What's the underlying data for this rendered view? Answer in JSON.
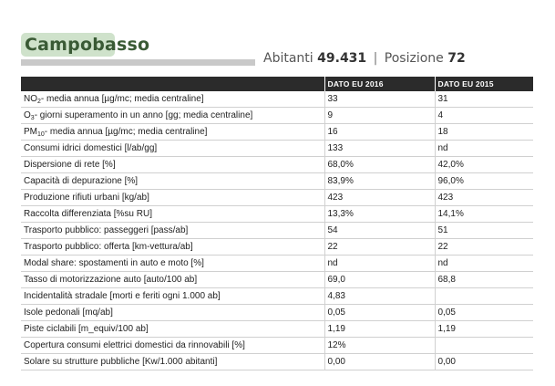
{
  "header": {
    "city": "Campobasso",
    "abitanti_label": "Abitanti",
    "abitanti_value": "49.431",
    "separator": "|",
    "posizione_label": "Posizione",
    "posizione_value": "72"
  },
  "table": {
    "columns": [
      "",
      "DATO EU 2016",
      "DATO EU 2015"
    ],
    "rows": [
      {
        "pre": "NO",
        "sub": "2",
        "post": "- media annua [µg/mc; media centraline]",
        "v2016": "33",
        "v2015": "31"
      },
      {
        "pre": "O",
        "sub": "3",
        "post": "- giorni superamento in un anno [gg; media centraline]",
        "v2016": "9",
        "v2015": "4"
      },
      {
        "pre": "PM",
        "sub": "10",
        "post": "- media annua [µg/mc; media centraline]",
        "v2016": "16",
        "v2015": "18"
      },
      {
        "pre": "Consumi idrici domestici [l/ab/gg]",
        "sub": "",
        "post": "",
        "v2016": "133",
        "v2015": "nd"
      },
      {
        "pre": "Dispersione di rete [%]",
        "sub": "",
        "post": "",
        "v2016": "68,0%",
        "v2015": "42,0%"
      },
      {
        "pre": "Capacità di depurazione [%]",
        "sub": "",
        "post": "",
        "v2016": "83,9%",
        "v2015": "96,0%"
      },
      {
        "pre": "Produzione rifiuti urbani [kg/ab]",
        "sub": "",
        "post": "",
        "v2016": "423",
        "v2015": "423"
      },
      {
        "pre": "Raccolta differenziata [%su RU]",
        "sub": "",
        "post": "",
        "v2016": "13,3%",
        "v2015": "14,1%"
      },
      {
        "pre": "Trasporto pubblico: passeggeri [pass/ab]",
        "sub": "",
        "post": "",
        "v2016": "54",
        "v2015": "51"
      },
      {
        "pre": "Trasporto pubblico: offerta [km-vettura/ab]",
        "sub": "",
        "post": "",
        "v2016": "22",
        "v2015": "22"
      },
      {
        "pre": "Modal share: spostamenti in auto e moto [%]",
        "sub": "",
        "post": "",
        "v2016": "nd",
        "v2015": "nd"
      },
      {
        "pre": "Tasso di motorizzazione auto [auto/100 ab]",
        "sub": "",
        "post": "",
        "v2016": "69,0",
        "v2015": "68,8"
      },
      {
        "pre": "Incidentalità stradale [morti e feriti ogni 1.000 ab]",
        "sub": "",
        "post": "",
        "v2016": "4,83",
        "v2015": ""
      },
      {
        "pre": "Isole pedonali [mq/ab]",
        "sub": "",
        "post": "",
        "v2016": "0,05",
        "v2015": "0,05"
      },
      {
        "pre": "Piste ciclabili [m_equiv/100 ab]",
        "sub": "",
        "post": "",
        "v2016": "1,19",
        "v2015": "1,19"
      },
      {
        "pre": "Copertura consumi elettrici domestici da rinnovabili [%]",
        "sub": "",
        "post": "",
        "v2016": "12%",
        "v2015": ""
      },
      {
        "pre": "Solare su strutture pubbliche [Kw/1.000 abitanti]",
        "sub": "",
        "post": "",
        "v2016": "0,00",
        "v2015": "0,00"
      }
    ]
  },
  "colors": {
    "title_pill": "#cfe2cb",
    "title_text": "#3a5a35",
    "header_bg": "#2b2b2b",
    "rule": "#d0d0d0",
    "grey_bar": "#c9c9c9"
  }
}
